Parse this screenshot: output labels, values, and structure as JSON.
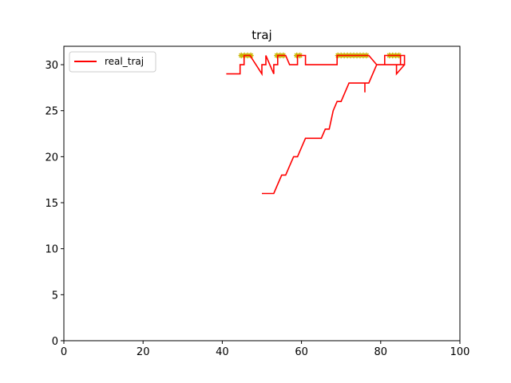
{
  "chart_data": {
    "type": "line",
    "title": "traj",
    "xlabel": "",
    "ylabel": "",
    "xlim": [
      0,
      100
    ],
    "ylim": [
      0,
      32
    ],
    "xticks": [
      0,
      20,
      40,
      60,
      80,
      100
    ],
    "yticks": [
      0,
      5,
      10,
      15,
      20,
      25,
      30
    ],
    "grid": false,
    "legend": {
      "placement": "top-left",
      "entries": [
        "real_traj"
      ]
    },
    "series": [
      {
        "name": "real_traj",
        "color": "#ff0000",
        "x": [
          41,
          44.5,
          44.5,
          45.5,
          45.5,
          47,
          50,
          50,
          51,
          51,
          52,
          53,
          53,
          54,
          54,
          56,
          57,
          59,
          59,
          60,
          61,
          61,
          62,
          62,
          69,
          69,
          75,
          77,
          79,
          86,
          86,
          85,
          85,
          84,
          84,
          86,
          86,
          81,
          81,
          79,
          77,
          76,
          76,
          76,
          72,
          72,
          70,
          69,
          68,
          67,
          66,
          65,
          61,
          60,
          59,
          58,
          57,
          56,
          55,
          54,
          53,
          50
        ],
        "y": [
          29,
          29,
          30,
          30,
          31,
          31,
          29,
          30,
          30,
          31,
          30,
          29,
          30,
          30,
          31,
          31,
          30,
          30,
          31,
          31,
          31,
          30,
          30,
          30,
          30,
          31,
          31,
          31,
          30,
          30,
          31,
          31,
          30,
          30,
          29,
          30,
          31,
          31,
          30,
          30,
          28,
          28,
          27,
          28,
          28,
          28,
          26,
          26,
          25,
          23,
          23,
          22,
          22,
          21,
          20,
          20,
          19,
          18,
          18,
          17,
          16,
          16
        ]
      }
    ],
    "markers": {
      "color": "#c8b400",
      "symbol": "*",
      "points": [
        {
          "x": 44.8,
          "y": 31
        },
        {
          "x": 45.6,
          "y": 31
        },
        {
          "x": 46.4,
          "y": 31
        },
        {
          "x": 47.2,
          "y": 31
        },
        {
          "x": 53.8,
          "y": 31
        },
        {
          "x": 54.6,
          "y": 31
        },
        {
          "x": 55.4,
          "y": 31
        },
        {
          "x": 58.8,
          "y": 31
        },
        {
          "x": 59.6,
          "y": 31
        },
        {
          "x": 69.2,
          "y": 31
        },
        {
          "x": 70.0,
          "y": 31
        },
        {
          "x": 70.8,
          "y": 31
        },
        {
          "x": 71.6,
          "y": 31
        },
        {
          "x": 72.4,
          "y": 31
        },
        {
          "x": 73.2,
          "y": 31
        },
        {
          "x": 74.0,
          "y": 31
        },
        {
          "x": 74.8,
          "y": 31
        },
        {
          "x": 75.6,
          "y": 31
        },
        {
          "x": 76.4,
          "y": 31
        },
        {
          "x": 82.2,
          "y": 31
        },
        {
          "x": 83.0,
          "y": 31
        },
        {
          "x": 83.8,
          "y": 31
        },
        {
          "x": 84.6,
          "y": 31
        }
      ]
    }
  }
}
